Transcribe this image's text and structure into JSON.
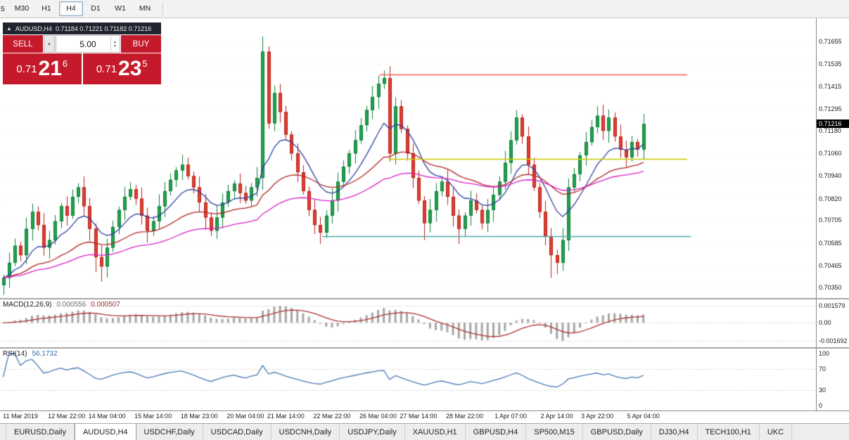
{
  "toolbar": {
    "clipped_left_button": "5",
    "timeframes": [
      {
        "label": "M30",
        "active": false
      },
      {
        "label": "H1",
        "active": false
      },
      {
        "label": "H4",
        "active": true
      },
      {
        "label": "D1",
        "active": false
      },
      {
        "label": "W1",
        "active": false
      },
      {
        "label": "MN",
        "active": false
      }
    ]
  },
  "trade_panel": {
    "collapse_icon": "▲",
    "symbol": "AUDUSD,H4",
    "ohlc_text": "0.71184 0.71221 0.71182 0.71216",
    "sell_label": "SELL",
    "buy_label": "BUY",
    "volume_value": "5.00",
    "bid": {
      "base": "0.71",
      "big": "21",
      "sup": "6"
    },
    "ask": {
      "base": "0.71",
      "big": "23",
      "sup": "5"
    }
  },
  "price_axis": {
    "ticks": [
      "0.71655",
      "0.71535",
      "0.71415",
      "0.71295",
      "0.71180",
      "0.71060",
      "0.70940",
      "0.70820",
      "0.70705",
      "0.70585",
      "0.70465",
      "0.70350"
    ],
    "current_price": "0.71216"
  },
  "macd_panel": {
    "name": "MACD(12,26,9)",
    "value_main": "0.000556",
    "value_signal": "0.000507",
    "axis_labels": [
      "0.001579",
      "0.00",
      "-0.001692"
    ]
  },
  "rsi_panel": {
    "name": "RSI(14)",
    "value": "56.1732",
    "axis_labels": [
      "100",
      "70",
      "30",
      "0"
    ]
  },
  "date_axis": {
    "labels": [
      "11 Mar 2019",
      "12 Mar 22:00",
      "14 Mar 04:00",
      "15 Mar 14:00",
      "18 Mar 23:00",
      "20 Mar 04:00",
      "21 Mar 14:00",
      "22 Mar 22:00",
      "26 Mar 04:00",
      "27 Mar 14:00",
      "28 Mar 22:00",
      "1 Apr 07:00",
      "2 Apr 14:00",
      "3 Apr 22:00",
      "5 Apr 04:00"
    ]
  },
  "tabs": [
    {
      "label": "EURUSD,Daily",
      "active": false
    },
    {
      "label": "AUDUSD,H4",
      "active": true
    },
    {
      "label": "USDCHF,Daily",
      "active": false
    },
    {
      "label": "USDCAD,Daily",
      "active": false
    },
    {
      "label": "USDCNH,Daily",
      "active": false
    },
    {
      "label": "USDJPY,Daily",
      "active": false
    },
    {
      "label": "XAUUSD,H1",
      "active": false
    },
    {
      "label": "GBPUSD,H4",
      "active": false
    },
    {
      "label": "SP500,M15",
      "active": false
    },
    {
      "label": "GBPUSD,Daily",
      "active": false
    },
    {
      "label": "DJ30,H4",
      "active": false
    },
    {
      "label": "TECH100,H1",
      "active": false
    },
    {
      "label": "UKC",
      "active": false
    }
  ],
  "chart_data": {
    "type": "candlestick",
    "symbol": "AUDUSD",
    "timeframe": "H4",
    "ohlc_current": {
      "open": 0.71184,
      "high": 0.71221,
      "low": 0.71182,
      "close": 0.71216
    },
    "price_min": 0.7033,
    "price_max": 0.7174,
    "candle_start_x": 4.5,
    "candle_spacing": 8.2,
    "body_width": 5,
    "first_open": 0.7036,
    "default_wick": 0.0006,
    "closes": [
      0.704,
      0.7048,
      0.7057,
      0.7052,
      0.7066,
      0.7075,
      0.7068,
      0.7056,
      0.706,
      0.707,
      0.7078,
      0.7073,
      0.7083,
      0.7088,
      0.7078,
      0.7066,
      0.7051,
      0.7046,
      0.7056,
      0.7067,
      0.7076,
      0.7083,
      0.7087,
      0.7082,
      0.7073,
      0.7065,
      0.707,
      0.7078,
      0.7086,
      0.7092,
      0.7097,
      0.71,
      0.7094,
      0.7088,
      0.708,
      0.7072,
      0.7065,
      0.7072,
      0.708,
      0.7086,
      0.709,
      0.7085,
      0.7081,
      0.7088,
      0.7093,
      0.716,
      0.7122,
      0.7138,
      0.7128,
      0.7116,
      0.7106,
      0.7096,
      0.7086,
      0.7076,
      0.7068,
      0.7064,
      0.7073,
      0.7081,
      0.7091,
      0.7099,
      0.7106,
      0.7113,
      0.7121,
      0.7129,
      0.7136,
      0.7143,
      0.7146,
      0.7106,
      0.7131,
      0.7119,
      0.7106,
      0.7093,
      0.7081,
      0.7069,
      0.7076,
      0.7086,
      0.7091,
      0.7083,
      0.7073,
      0.7066,
      0.7073,
      0.7081,
      0.7076,
      0.7069,
      0.7076,
      0.7084,
      0.7091,
      0.7101,
      0.7113,
      0.7125,
      0.7115,
      0.71,
      0.7088,
      0.7075,
      0.7062,
      0.7052,
      0.7048,
      0.706,
      0.7088,
      0.7095,
      0.7105,
      0.7112,
      0.712,
      0.7126,
      0.7118,
      0.7125,
      0.7115,
      0.7108,
      0.7104,
      0.7112,
      0.7108,
      0.71216
    ],
    "high_overrides": {
      "45": 0.7168,
      "47": 0.7142,
      "66": 0.715,
      "89": 0.7129,
      "103": 0.7131
    },
    "low_overrides": {
      "0": 0.7031,
      "16": 0.7043,
      "17": 0.7038,
      "55": 0.7058,
      "73": 0.706,
      "79": 0.7058,
      "95": 0.704,
      "96": 0.7042
    },
    "colors": {
      "bull": "#21a14d",
      "bull_border": "#0e7f38",
      "bear": "#e23d31",
      "bear_border": "#b2221a",
      "background": "#ffffff",
      "grid": "#efefef"
    },
    "moving_averages": [
      {
        "period": 10,
        "color": "#2e3f9f"
      },
      {
        "period": 30,
        "color": "#b22222"
      },
      {
        "period": 55,
        "color": "#d81fc8"
      }
    ],
    "hlines": [
      {
        "price": 0.7148,
        "color": "#ff5454",
        "x1_frac": 0.465,
        "x2_frac": 0.842
      },
      {
        "price": 0.7103,
        "color": "#c9c900",
        "x1_frac": 0.476,
        "x2_frac": 0.842
      },
      {
        "price": 0.7062,
        "color": "#4aa6a6",
        "x1_frac": 0.395,
        "x2_frac": 0.847
      }
    ],
    "date_label_indices": [
      3,
      11,
      18,
      26,
      34,
      42,
      49,
      57,
      65,
      72,
      80,
      88,
      96,
      103,
      111
    ],
    "macd": {
      "fast": 12,
      "slow": 26,
      "signal": 9,
      "range": [
        -0.001692,
        0.001579
      ],
      "histogram_color": "#a6a6a6",
      "signal_color": "#b03030"
    },
    "rsi": {
      "period": 14,
      "color": "#4a7ab5",
      "levels": [
        30,
        70
      ],
      "range": [
        0,
        100
      ],
      "current": 56.1732
    }
  }
}
